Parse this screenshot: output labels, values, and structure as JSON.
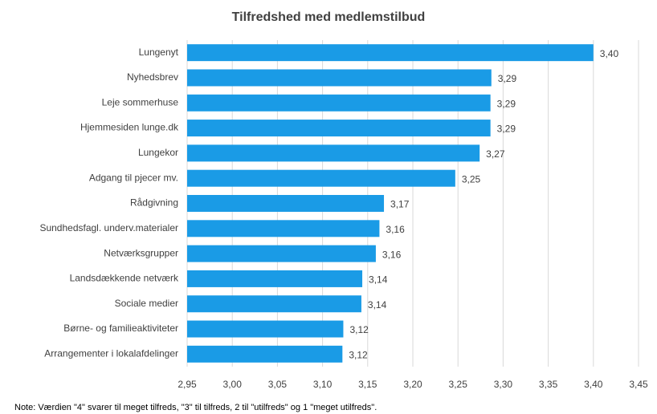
{
  "chart_data": {
    "type": "barh",
    "title": "Tilfredshed med medlemstilbud",
    "note": "Note: Værdien \"4\" svarer til meget tilfreds, \"3\" til tilfreds, 2 til \"utilfreds\" og 1 \"meget utilfreds\".",
    "categories": [
      "Lungenyt",
      "Nyhedsbrev",
      "Leje sommerhuse",
      "Hjemmesiden lunge.dk",
      "Lungekor",
      "Adgang til pjecer mv.",
      "Rådgivning",
      "Sundhedsfagl. underv.materialer",
      "Netværksgrupper",
      "Landsdækkende netværk",
      "Sociale medier",
      "Børne- og familieaktiviteter",
      "Arrangementer i lokalafdelinger"
    ],
    "values": [
      3.4,
      3.287,
      3.286,
      3.286,
      3.274,
      3.247,
      3.168,
      3.163,
      3.159,
      3.144,
      3.143,
      3.123,
      3.122
    ],
    "value_labels": [
      "3,40",
      "3,29",
      "3,29",
      "3,29",
      "3,27",
      "3,25",
      "3,17",
      "3,16",
      "3,16",
      "3,14",
      "3,14",
      "3,12",
      "3,12"
    ],
    "color": "#1a9be6",
    "xlim": [
      2.95,
      3.45
    ],
    "xticks": [
      {
        "value": 2.95,
        "label": "2,95"
      },
      {
        "value": 3.0,
        "label": "3,00"
      },
      {
        "value": 3.05,
        "label": "3,05"
      },
      {
        "value": 3.1,
        "label": "3,10"
      },
      {
        "value": 3.15,
        "label": "3,15"
      },
      {
        "value": 3.2,
        "label": "3,20"
      },
      {
        "value": 3.25,
        "label": "3,25"
      },
      {
        "value": 3.3,
        "label": "3,30"
      },
      {
        "value": 3.35,
        "label": "3,35"
      },
      {
        "value": 3.4,
        "label": "3,40"
      },
      {
        "value": 3.45,
        "label": "3,45"
      }
    ],
    "grid": true
  }
}
